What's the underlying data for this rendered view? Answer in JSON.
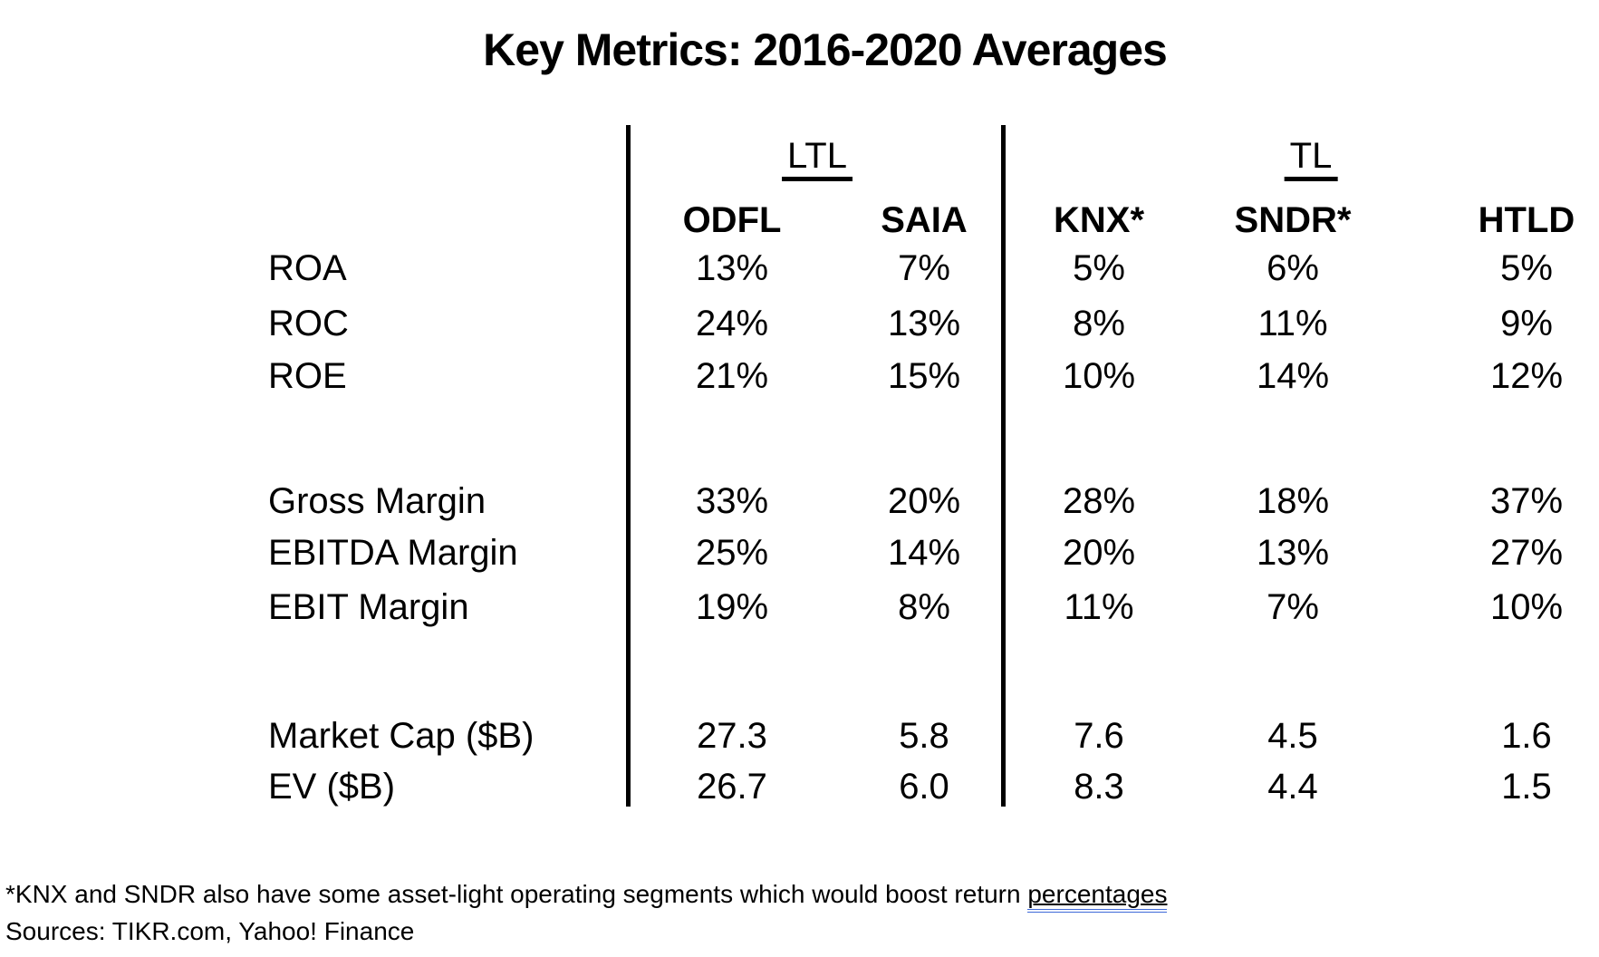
{
  "title": "Key Metrics: 2016-2020 Averages",
  "table": {
    "groups": [
      {
        "label": "LTL"
      },
      {
        "label": "TL"
      }
    ],
    "columns": [
      "ODFL",
      "SAIA",
      "KNX*",
      "SNDR*",
      "HTLD"
    ],
    "rows": [
      {
        "label": "ROA",
        "values": [
          "13%",
          "7%",
          "5%",
          "6%",
          "5%"
        ]
      },
      {
        "label": "ROC",
        "values": [
          "24%",
          "13%",
          "8%",
          "11%",
          "9%"
        ]
      },
      {
        "label": "ROE",
        "values": [
          "21%",
          "15%",
          "10%",
          "14%",
          "12%"
        ]
      },
      {
        "label": "Gross Margin",
        "values": [
          "33%",
          "20%",
          "28%",
          "18%",
          "37%"
        ]
      },
      {
        "label": "EBITDA Margin",
        "values": [
          "25%",
          "14%",
          "20%",
          "13%",
          "27%"
        ]
      },
      {
        "label": "EBIT Margin",
        "values": [
          "19%",
          "8%",
          "11%",
          "7%",
          "10%"
        ]
      },
      {
        "label": "Market Cap ($B)",
        "values": [
          "27.3",
          "5.8",
          "7.6",
          "4.5",
          "1.6"
        ]
      },
      {
        "label": "EV ($B)",
        "values": [
          "26.7",
          "6.0",
          "8.3",
          "4.4",
          "1.5"
        ]
      }
    ]
  },
  "footnote": {
    "asterisk_note_prefix": "*KNX and SNDR also have some asset-light operating segments which would boost return ",
    "asterisk_note_highlight": "percentages",
    "sources_line": "Sources: TIKR.com, Yahoo! Finance"
  },
  "colors": {
    "text": "#000000",
    "background": "#ffffff",
    "divider": "#000000",
    "grammar_underline": "#3f6ad8"
  }
}
